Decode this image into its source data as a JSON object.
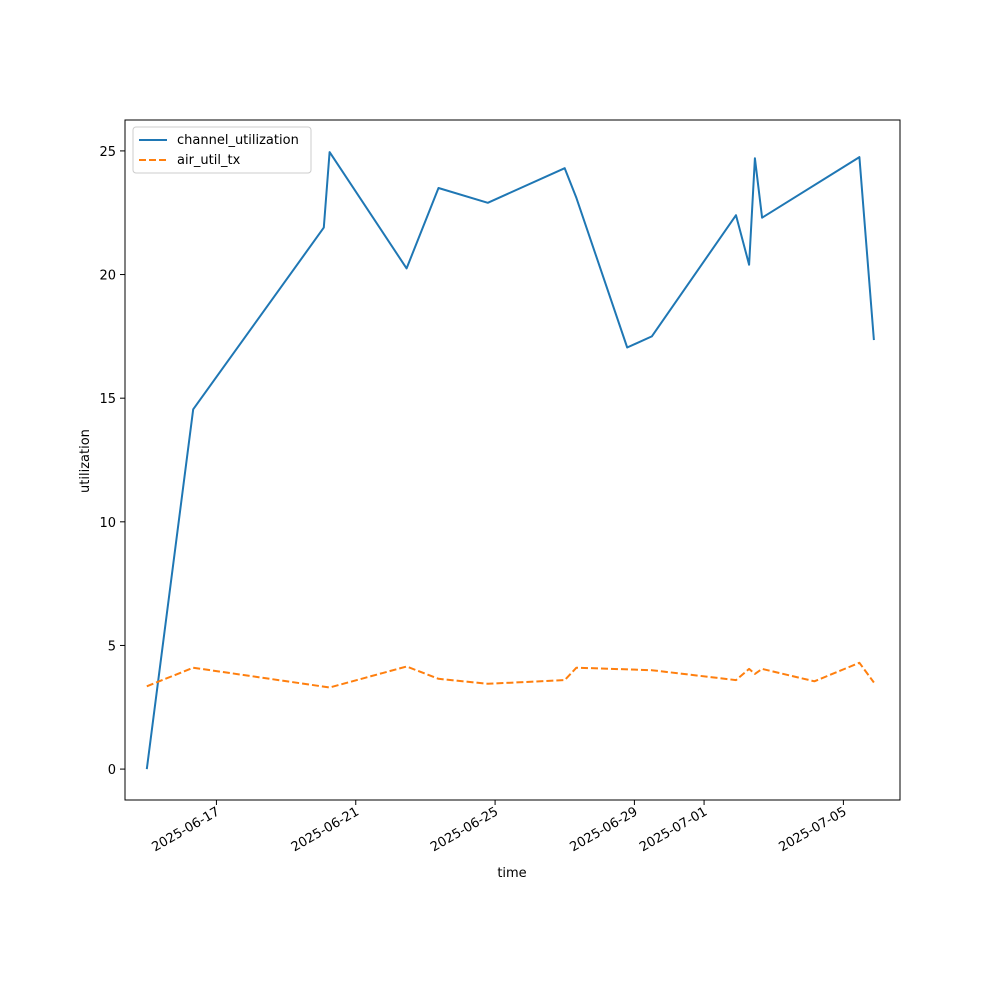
{
  "chart_data": {
    "type": "line",
    "title": "",
    "xlabel": "time",
    "ylabel": "utilization",
    "ylim": [
      -1.25,
      26.25
    ],
    "xlim": [
      "2025-06-14T09:00",
      "2025-07-06T15:00"
    ],
    "grid": false,
    "legend_position": "top-left",
    "x_ticks": [
      {
        "date": "2025-06-17",
        "label": "2025-06-17"
      },
      {
        "date": "2025-06-21",
        "label": "2025-06-21"
      },
      {
        "date": "2025-06-25",
        "label": "2025-06-25"
      },
      {
        "date": "2025-06-29",
        "label": "2025-06-29"
      },
      {
        "date": "2025-07-01",
        "label": "2025-07-01"
      },
      {
        "date": "2025-07-05",
        "label": "2025-07-05"
      }
    ],
    "y_ticks": [
      {
        "value": 0,
        "label": "0"
      },
      {
        "value": 5,
        "label": "5"
      },
      {
        "value": 10,
        "label": "10"
      },
      {
        "value": 15,
        "label": "15"
      },
      {
        "value": 20,
        "label": "20"
      },
      {
        "value": 25,
        "label": "25"
      }
    ],
    "series": [
      {
        "name": "channel_utilization",
        "color": "#1f77b4",
        "style": "solid",
        "points": [
          {
            "x": "2025-06-15T00:00",
            "y": 0.0
          },
          {
            "x": "2025-06-16T08:00",
            "y": 14.55
          },
          {
            "x": "2025-06-20T02:00",
            "y": 21.9
          },
          {
            "x": "2025-06-20T06:00",
            "y": 24.95
          },
          {
            "x": "2025-06-22T11:00",
            "y": 20.25
          },
          {
            "x": "2025-06-23T09:00",
            "y": 23.5
          },
          {
            "x": "2025-06-24T19:00",
            "y": 22.9
          },
          {
            "x": "2025-06-27T00:00",
            "y": 24.3
          },
          {
            "x": "2025-06-27T08:00",
            "y": 23.1
          },
          {
            "x": "2025-06-28T19:00",
            "y": 17.05
          },
          {
            "x": "2025-06-29T12:00",
            "y": 17.5
          },
          {
            "x": "2025-07-01T22:00",
            "y": 22.4
          },
          {
            "x": "2025-07-02T07:00",
            "y": 20.4
          },
          {
            "x": "2025-07-02T11:00",
            "y": 24.7
          },
          {
            "x": "2025-07-02T16:00",
            "y": 22.3
          },
          {
            "x": "2025-07-05T11:00",
            "y": 24.75
          },
          {
            "x": "2025-07-05T21:00",
            "y": 17.35
          }
        ]
      },
      {
        "name": "air_util_tx",
        "color": "#ff7f0e",
        "style": "dashed",
        "points": [
          {
            "x": "2025-06-15T00:00",
            "y": 3.35
          },
          {
            "x": "2025-06-16T08:00",
            "y": 4.1
          },
          {
            "x": "2025-06-20T06:00",
            "y": 3.3
          },
          {
            "x": "2025-06-22T11:00",
            "y": 4.15
          },
          {
            "x": "2025-06-23T09:00",
            "y": 3.65
          },
          {
            "x": "2025-06-24T19:00",
            "y": 3.45
          },
          {
            "x": "2025-06-27T00:00",
            "y": 3.6
          },
          {
            "x": "2025-06-27T08:00",
            "y": 4.1
          },
          {
            "x": "2025-06-29T12:00",
            "y": 4.0
          },
          {
            "x": "2025-07-01T22:00",
            "y": 3.6
          },
          {
            "x": "2025-07-02T07:00",
            "y": 4.05
          },
          {
            "x": "2025-07-02T11:00",
            "y": 3.85
          },
          {
            "x": "2025-07-02T16:00",
            "y": 4.05
          },
          {
            "x": "2025-07-04T04:00",
            "y": 3.55
          },
          {
            "x": "2025-07-05T11:00",
            "y": 4.3
          },
          {
            "x": "2025-07-05T21:00",
            "y": 3.5
          }
        ]
      }
    ]
  }
}
